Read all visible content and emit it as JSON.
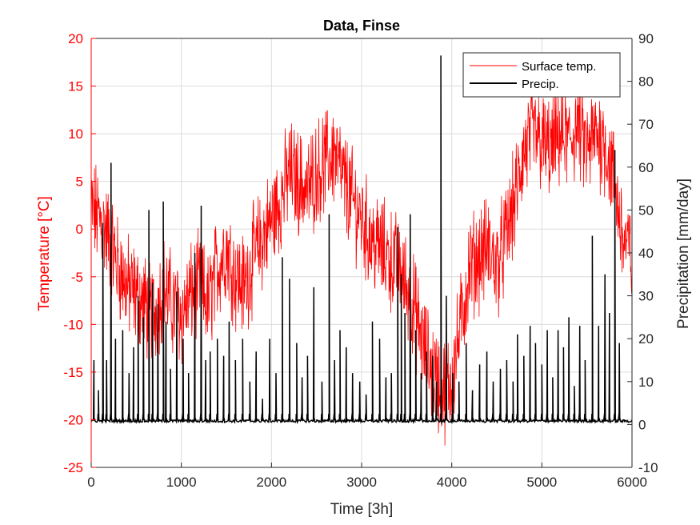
{
  "chart_data": {
    "type": "line",
    "title": "Data, Finse",
    "xlabel": "Time [3h]",
    "ylabel_left": "Temperature [°C]",
    "ylabel_right": "Precipitation [mm/day]",
    "xlim": [
      0,
      6000
    ],
    "ylim_left": [
      -25,
      20
    ],
    "ylim_right": [
      -10,
      90
    ],
    "xticks": [
      "0",
      "1000",
      "2000",
      "3000",
      "4000",
      "5000",
      "6000"
    ],
    "yticks_left": [
      "-25",
      "-20",
      "-15",
      "-10",
      "-5",
      "0",
      "5",
      "10",
      "15",
      "20"
    ],
    "yticks_right": [
      "-10",
      "0",
      "10",
      "20",
      "30",
      "40",
      "50",
      "60",
      "70",
      "80",
      "90"
    ],
    "grid": true,
    "legend_position": "top-right",
    "colors": {
      "temperature": "#ff0000",
      "precipitation": "#000000",
      "axis": "#262626"
    },
    "series": [
      {
        "name": "Surface temp.",
        "axis": "left",
        "x": [
          0,
          100,
          200,
          300,
          400,
          500,
          600,
          700,
          800,
          900,
          1000,
          1100,
          1200,
          1300,
          1400,
          1500,
          1600,
          1700,
          1800,
          1900,
          2000,
          2100,
          2200,
          2300,
          2400,
          2500,
          2600,
          2700,
          2800,
          2900,
          3000,
          3100,
          3200,
          3300,
          3400,
          3500,
          3600,
          3700,
          3800,
          3900,
          4000,
          4100,
          4200,
          4300,
          4400,
          4500,
          4600,
          4700,
          4800,
          4900,
          5000,
          5100,
          5200,
          5300,
          5400,
          5500,
          5600,
          5700,
          5800,
          5900,
          6000
        ],
        "values": [
          2,
          1,
          -1,
          -4,
          -6,
          -7,
          -8,
          -9,
          -6,
          -8,
          -9,
          -7,
          -6,
          -8,
          -4,
          -2,
          -5,
          -6,
          -3,
          -1,
          1,
          3,
          6,
          5,
          4,
          6,
          7,
          8,
          5,
          3,
          1,
          -1,
          -2,
          -3,
          -4,
          -6,
          -9,
          -13,
          -15,
          -17,
          -16,
          -10,
          -4,
          -3,
          -2,
          -4,
          -1,
          3,
          8,
          10,
          9,
          8,
          10,
          9,
          11,
          8,
          10,
          9,
          5,
          -1,
          -3
        ],
        "range": [
          -24.2,
          16.1
        ]
      },
      {
        "name": "Precip.",
        "axis": "right",
        "x": [
          30,
          80,
          130,
          170,
          220,
          270,
          350,
          420,
          470,
          520,
          580,
          640,
          680,
          740,
          800,
          830,
          880,
          950,
          1020,
          1080,
          1150,
          1220,
          1270,
          1320,
          1400,
          1470,
          1530,
          1600,
          1680,
          1760,
          1830,
          1900,
          1980,
          2050,
          2120,
          2200,
          2280,
          2340,
          2400,
          2470,
          2560,
          2640,
          2700,
          2760,
          2830,
          2900,
          2980,
          3050,
          3120,
          3200,
          3270,
          3330,
          3400,
          3440,
          3480,
          3540,
          3600,
          3660,
          3720,
          3790,
          3830,
          3880,
          3940,
          4010,
          4080,
          4160,
          4230,
          4310,
          4390,
          4460,
          4540,
          4610,
          4680,
          4730,
          4800,
          4870,
          4930,
          5000,
          5060,
          5120,
          5180,
          5240,
          5300,
          5360,
          5420,
          5480,
          5560,
          5630,
          5700,
          5750,
          5810,
          5860
        ],
        "values": [
          15,
          8,
          47,
          15,
          61,
          20,
          22,
          12,
          18,
          30,
          25,
          50,
          33,
          28,
          52,
          24,
          13,
          31,
          20,
          12,
          40,
          51,
          15,
          17,
          20,
          16,
          24,
          15,
          20,
          10,
          17,
          6,
          20,
          12,
          39,
          34,
          19,
          11,
          16,
          32,
          10,
          49,
          15,
          22,
          18,
          12,
          10,
          7,
          24,
          20,
          11,
          12,
          46,
          35,
          26,
          49,
          22,
          12,
          17,
          16,
          10,
          86,
          30,
          12,
          10,
          19,
          8,
          14,
          17,
          10,
          13,
          15,
          10,
          21,
          16,
          23,
          19,
          14,
          22,
          11,
          22,
          18,
          25,
          9,
          23,
          15,
          44,
          23,
          35,
          26,
          64,
          19
        ],
        "baseline": 0.5
      }
    ]
  }
}
